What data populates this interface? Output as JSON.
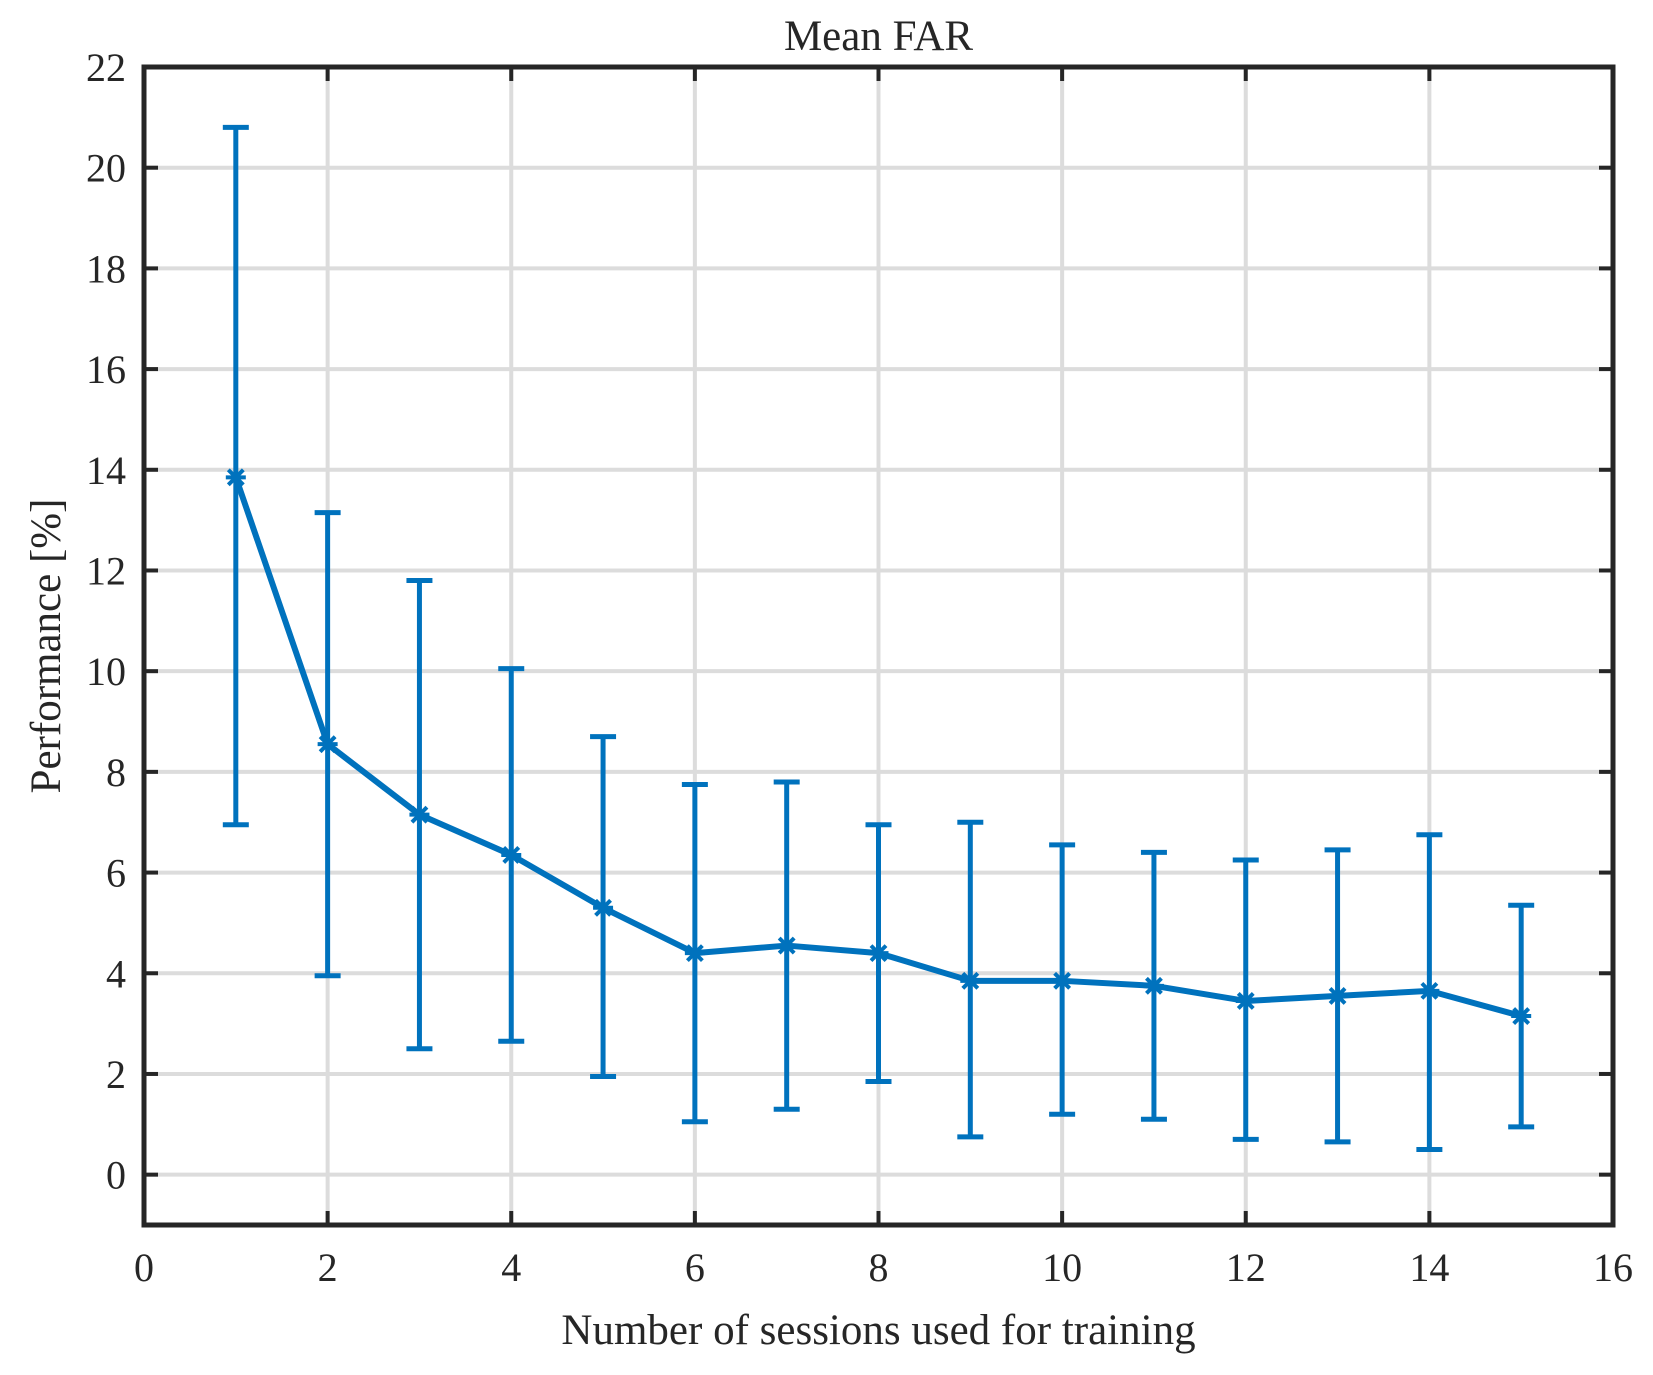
{
  "chart_data": {
    "type": "line",
    "title": "Mean FAR",
    "xlabel": "Number of sessions used for training",
    "ylabel": "Performance [%]",
    "xlim": [
      0,
      16
    ],
    "ylim": [
      -1,
      22
    ],
    "xticks": [
      0,
      2,
      4,
      6,
      8,
      10,
      12,
      14,
      16
    ],
    "yticks": [
      0,
      2,
      4,
      6,
      8,
      10,
      12,
      14,
      16,
      18,
      20,
      22
    ],
    "grid": true,
    "series": [
      {
        "name": "Mean FAR",
        "color": "#0072bd",
        "marker": "asterisk",
        "x": [
          1,
          2,
          3,
          4,
          5,
          6,
          7,
          8,
          9,
          10,
          11,
          12,
          13,
          14,
          15
        ],
        "y": [
          13.85,
          8.55,
          7.15,
          6.35,
          5.3,
          4.4,
          4.55,
          4.4,
          3.85,
          3.85,
          3.75,
          3.45,
          3.55,
          3.65,
          3.15
        ],
        "err_low": [
          6.95,
          3.95,
          2.5,
          2.65,
          1.95,
          1.05,
          1.3,
          1.85,
          0.75,
          1.2,
          1.1,
          0.7,
          0.65,
          0.5,
          0.95
        ],
        "err_high": [
          20.8,
          13.15,
          11.8,
          10.05,
          8.7,
          7.75,
          7.8,
          6.95,
          7.0,
          6.55,
          6.4,
          6.25,
          6.45,
          6.75,
          5.35
        ]
      }
    ]
  }
}
